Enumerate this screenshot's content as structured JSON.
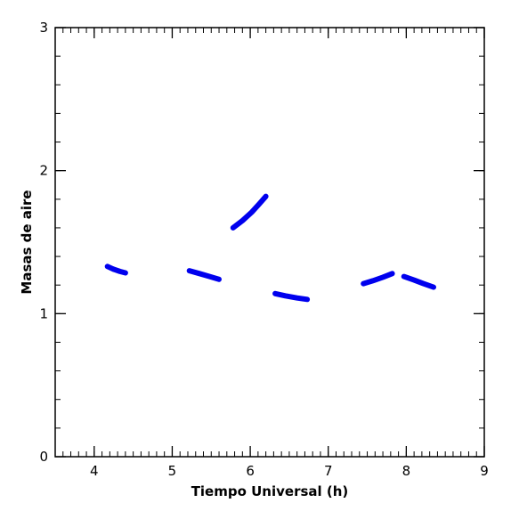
{
  "chart_data": {
    "type": "line",
    "xlabel": "Tiempo Universal (h)",
    "ylabel": "Masas de aire",
    "xlim": [
      3.5,
      9
    ],
    "ylim": [
      0,
      3
    ],
    "x_ticks": [
      4,
      5,
      6,
      7,
      8,
      9
    ],
    "y_ticks": [
      0,
      1,
      2,
      3
    ],
    "x_minor_step": 0.1,
    "y_minor_step": 0.2,
    "grid": false,
    "legend": "none",
    "line_color": "#0000ee",
    "series": [
      {
        "x": [
          4.17,
          4.25,
          4.33,
          4.4
        ],
        "y": [
          1.33,
          1.31,
          1.295,
          1.285
        ]
      },
      {
        "x": [
          5.22,
          5.35,
          5.48,
          5.6
        ],
        "y": [
          1.3,
          1.28,
          1.26,
          1.24
        ]
      },
      {
        "x": [
          5.78,
          5.9,
          6.02,
          6.12,
          6.2
        ],
        "y": [
          1.6,
          1.65,
          1.71,
          1.77,
          1.82
        ]
      },
      {
        "x": [
          6.32,
          6.45,
          6.6,
          6.73
        ],
        "y": [
          1.14,
          1.125,
          1.11,
          1.1
        ]
      },
      {
        "x": [
          7.45,
          7.57,
          7.7,
          7.82
        ],
        "y": [
          1.21,
          1.23,
          1.255,
          1.28
        ]
      },
      {
        "x": [
          7.97,
          8.1,
          8.22,
          8.35
        ],
        "y": [
          1.26,
          1.235,
          1.21,
          1.185
        ]
      }
    ]
  }
}
